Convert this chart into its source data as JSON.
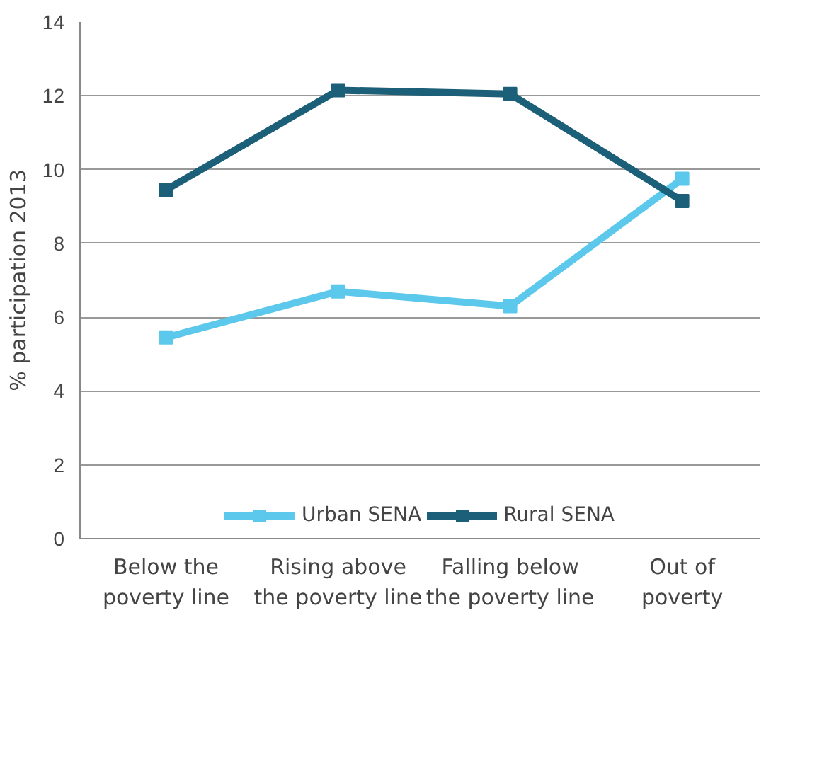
{
  "chart_data": {
    "type": "line",
    "ylabel": "% participation 2013",
    "categories": [
      "Below the\npoverty line",
      "Rising above\nthe poverty line",
      "Falling below\nthe poverty line",
      "Out of\npoverty"
    ],
    "series": [
      {
        "name": "Urban SENA",
        "color": "#5bc8ec",
        "values": [
          5.45,
          6.7,
          6.3,
          9.75
        ]
      },
      {
        "name": "Rural SENA",
        "color": "#1c5f78",
        "values": [
          9.45,
          12.15,
          12.05,
          9.15
        ]
      }
    ],
    "ylim": [
      0,
      14
    ],
    "yticks": [
      0,
      2,
      4,
      6,
      8,
      10,
      12,
      14
    ],
    "grid": "y",
    "legend": "bottom",
    "marker": "square",
    "line_style": "solid"
  }
}
